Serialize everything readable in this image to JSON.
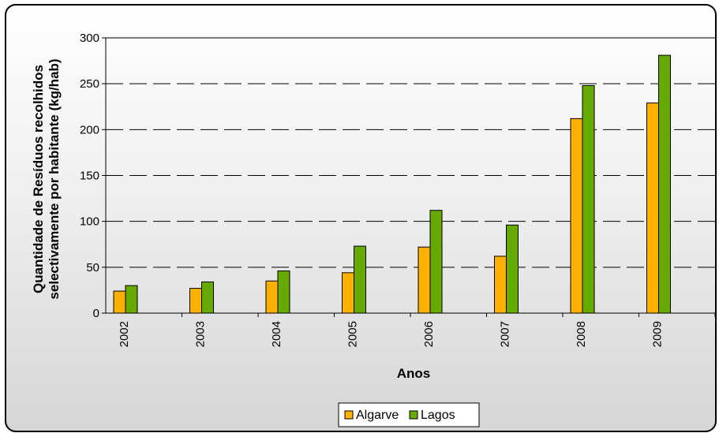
{
  "chart_data": {
    "type": "bar",
    "categories": [
      "2002",
      "2003",
      "2004",
      "2005",
      "2006",
      "2007",
      "2008",
      "2009"
    ],
    "series": [
      {
        "name": "Algarve",
        "values": [
          24,
          27,
          35,
          44,
          72,
          62,
          212,
          229
        ],
        "color": "#ffb000"
      },
      {
        "name": "Lagos",
        "values": [
          30,
          34,
          46,
          73,
          112,
          96,
          248,
          281
        ],
        "color": "#66aa00"
      }
    ],
    "title": "",
    "xlabel": "Anos",
    "ylabel_line1": "Quantidade de Resíduos recolhidos",
    "ylabel_line2": "selectivamente por habitante (kg/hab)",
    "ylim": [
      0,
      300
    ],
    "yticks": [
      "0",
      "50",
      "100",
      "150",
      "200",
      "250",
      "300"
    ],
    "grid": "dashed-horizontal",
    "legend_position": "bottom"
  }
}
